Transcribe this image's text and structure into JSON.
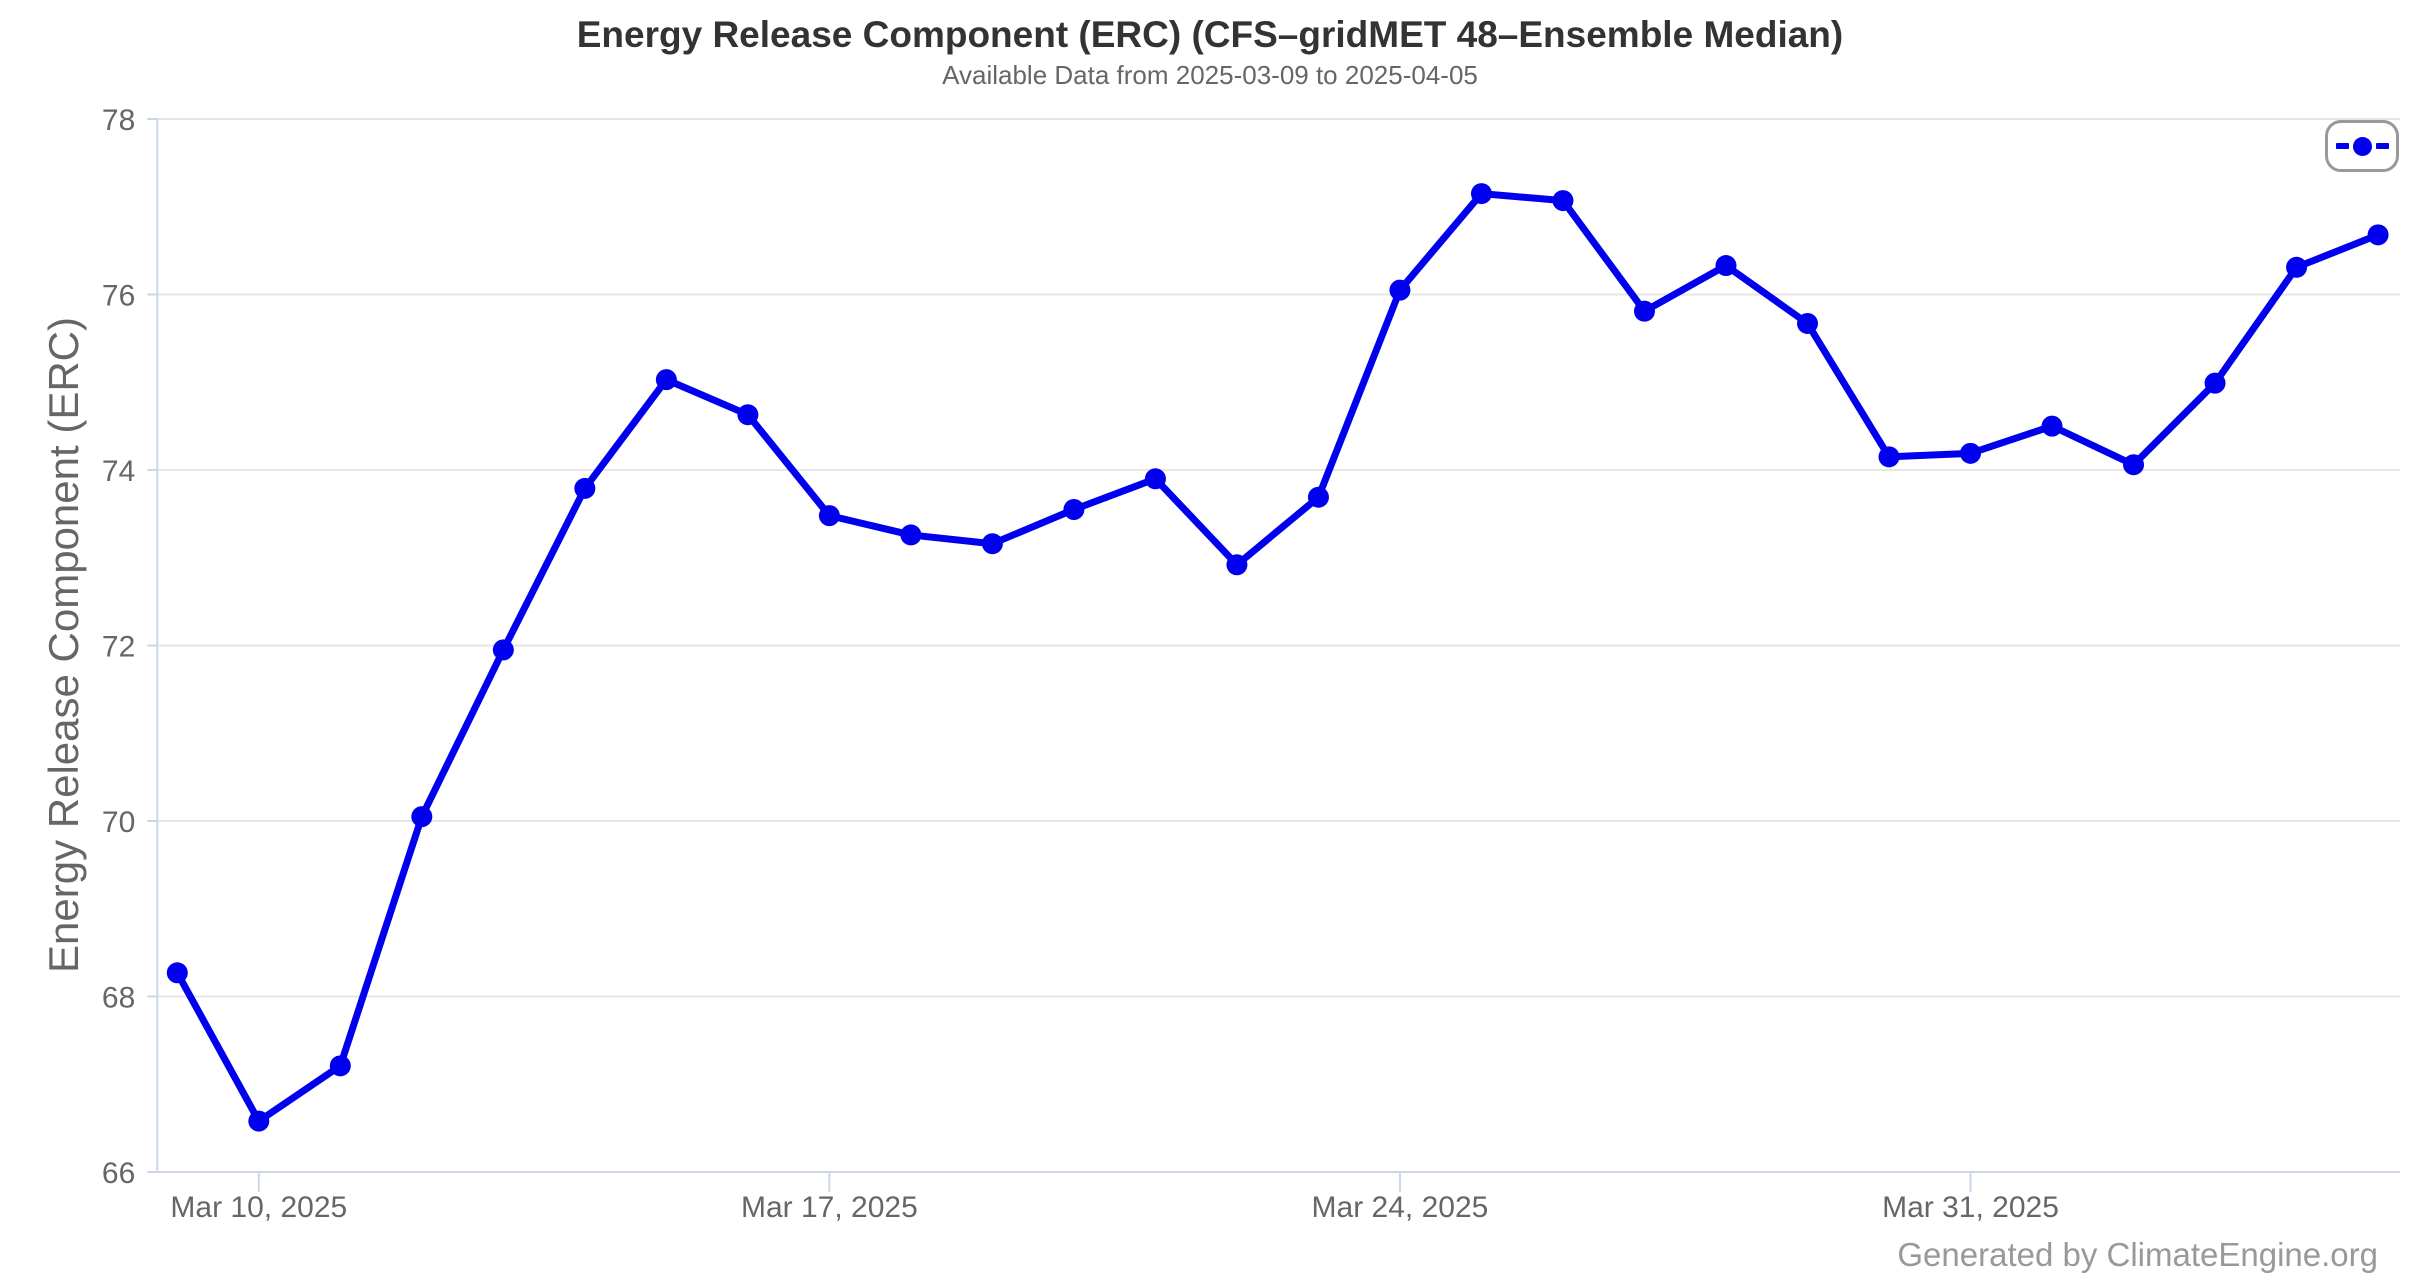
{
  "header": {
    "title": "Energy Release Component (ERC) (CFS–gridMET 48–Ensemble Median)",
    "subtitle": "Available Data from 2025-03-09 to 2025-04-05"
  },
  "y_axis_title": "Energy Release Component (ERC)",
  "credits": "Generated by ClimateEngine.org",
  "colors": {
    "line": "#0000ee",
    "grid": "#e6e6e6",
    "axis": "#ccd6eb",
    "label": "#666666",
    "title": "#333333",
    "credits": "#999999",
    "legend_border": "#999999",
    "background": "#ffffff"
  },
  "legend": {
    "position": "top-right",
    "symbol": "dash-dot-dash"
  },
  "chart_data": {
    "type": "line",
    "title": "Energy Release Component (ERC) (CFS–gridMET 48–Ensemble Median)",
    "subtitle": "Available Data from 2025-03-09 to 2025-04-05",
    "xlabel": "",
    "ylabel": "Energy Release Component (ERC)",
    "x": [
      "2025-03-09",
      "2025-03-10",
      "2025-03-11",
      "2025-03-12",
      "2025-03-13",
      "2025-03-14",
      "2025-03-15",
      "2025-03-16",
      "2025-03-17",
      "2025-03-18",
      "2025-03-19",
      "2025-03-20",
      "2025-03-21",
      "2025-03-22",
      "2025-03-23",
      "2025-03-24",
      "2025-03-25",
      "2025-03-26",
      "2025-03-27",
      "2025-03-28",
      "2025-03-29",
      "2025-03-30",
      "2025-03-31",
      "2025-04-01",
      "2025-04-02",
      "2025-04-03",
      "2025-04-04",
      "2025-04-05"
    ],
    "values": [
      68.27,
      66.58,
      67.21,
      70.05,
      71.95,
      73.79,
      75.03,
      74.63,
      73.48,
      73.26,
      73.16,
      73.55,
      73.9,
      72.92,
      73.69,
      76.05,
      77.15,
      77.07,
      75.81,
      76.33,
      75.67,
      74.15,
      74.19,
      74.5,
      74.06,
      74.99,
      76.31,
      76.68
    ],
    "ylim": [
      66,
      78
    ],
    "y_ticks": [
      66,
      68,
      70,
      72,
      74,
      76,
      78
    ],
    "x_ticks": [
      {
        "index": 1,
        "label": "Mar 10, 2025"
      },
      {
        "index": 8,
        "label": "Mar 17, 2025"
      },
      {
        "index": 15,
        "label": "Mar 24, 2025"
      },
      {
        "index": 22,
        "label": "Mar 31, 2025"
      }
    ],
    "grid": "horizontal",
    "legend_position": "top-right",
    "marker": "circle",
    "line_color": "#0000ee"
  }
}
